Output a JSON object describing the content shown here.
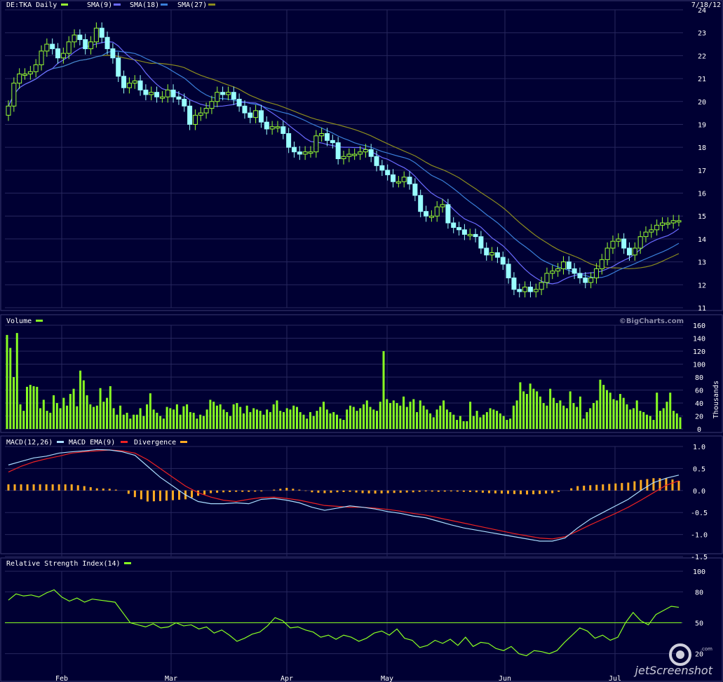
{
  "header": {
    "symbol_label": "DE:TKA Daily",
    "sma1_label": "SMA(9)",
    "sma2_label": "SMA(18)",
    "sma3_label": "SMA(27)",
    "date": "7/18/12"
  },
  "volume_panel": {
    "title": "Volume",
    "watermark": "©BigCharts.com",
    "units": "Thousands"
  },
  "macd_panel": {
    "label_macd": "MACD(12,26)",
    "label_ema": "MACD EMA(9)",
    "label_div": "Divergence"
  },
  "rsi_panel": {
    "title": "Relative Strength Index(14)"
  },
  "footer": {
    "brand": "jetScreenshot",
    "brand_small": ".com"
  },
  "colors": {
    "background": "#000033",
    "grid": "#27275e",
    "up_candle": "#99ff33",
    "down_candle": "#99ffff",
    "sma9": "#6a6aff",
    "sma18": "#3a7fd9",
    "sma27": "#8c8c1e",
    "volume": "#88ff22",
    "macd": "#aaddff",
    "macd_ema": "#ee2222",
    "divergence": "#ffaa22",
    "rsi": "#88ff22"
  },
  "chart_data": [
    {
      "type": "candlestick",
      "title": "DE:TKA Daily",
      "x_tick_labels": [
        "Feb",
        "Mar",
        "Apr",
        "May",
        "Jun",
        "Jul"
      ],
      "y_ticks": [
        11,
        12,
        13,
        14,
        15,
        16,
        17,
        18,
        19,
        20,
        21,
        22,
        23,
        24
      ],
      "ylim": [
        11,
        24
      ],
      "close": [
        19.8,
        20.8,
        21.2,
        21.2,
        21.3,
        21.6,
        22.2,
        22.5,
        22.3,
        21.9,
        22.1,
        22.6,
        22.9,
        22.7,
        22.3,
        22.6,
        23.2,
        22.8,
        22.3,
        21.9,
        21.1,
        20.6,
        20.8,
        20.9,
        20.5,
        20.3,
        20.4,
        20.2,
        20.2,
        20.5,
        20.2,
        20.1,
        19.8,
        19.0,
        19.4,
        19.5,
        19.7,
        20.0,
        20.4,
        20.3,
        20.4,
        20.1,
        19.8,
        19.5,
        19.3,
        19.6,
        19.1,
        18.8,
        18.9,
        18.9,
        18.6,
        18.0,
        17.8,
        17.7,
        17.8,
        17.8,
        18.5,
        18.6,
        18.3,
        18.2,
        17.5,
        17.6,
        17.7,
        17.7,
        17.8,
        17.9,
        17.6,
        17.2,
        17.0,
        16.8,
        16.5,
        16.5,
        16.7,
        16.4,
        15.9,
        15.2,
        15.0,
        15.0,
        15.4,
        15.5,
        14.7,
        14.5,
        14.4,
        14.2,
        14.2,
        14.1,
        13.6,
        13.3,
        13.4,
        13.2,
        12.9,
        12.3,
        11.8,
        11.7,
        11.9,
        11.7,
        11.8,
        12.1,
        12.5,
        12.6,
        12.7,
        13.0,
        12.7,
        12.5,
        12.3,
        12.1,
        12.3,
        12.7,
        13.1,
        13.6,
        13.9,
        14.0,
        13.6,
        13.3,
        13.6,
        14.1,
        14.3,
        14.4,
        14.6,
        14.7,
        14.7,
        14.8,
        14.8
      ]
    },
    {
      "type": "bar",
      "title": "Volume",
      "ylabel": "Thousands",
      "y_ticks": [
        0,
        20,
        40,
        60,
        80,
        100,
        120,
        140,
        160
      ],
      "ylim": [
        0,
        160
      ],
      "values": [
        145,
        125,
        80,
        148,
        38,
        28,
        65,
        68,
        66,
        65,
        32,
        45,
        28,
        25,
        52,
        40,
        32,
        48,
        36,
        54,
        62,
        35,
        90,
        75,
        52,
        38,
        34,
        36,
        63,
        42,
        48,
        66,
        32,
        22,
        36,
        22,
        25,
        16,
        22,
        22,
        32,
        20,
        38,
        55,
        30,
        25,
        20,
        16,
        34,
        32,
        30,
        38,
        22,
        35,
        38,
        26,
        25,
        16,
        22,
        20,
        30,
        45,
        42,
        36,
        38,
        30,
        26,
        20,
        38,
        40,
        34,
        24,
        36,
        26,
        32,
        30,
        28,
        22,
        30,
        26,
        38,
        44,
        28,
        26,
        32,
        30,
        36,
        34,
        26,
        22,
        16,
        26,
        20,
        28,
        34,
        42,
        30,
        24,
        26,
        22,
        16,
        14,
        30,
        36,
        34,
        28,
        32,
        38,
        44,
        34,
        30,
        28,
        42,
        120,
        46,
        40,
        44,
        40,
        36,
        50,
        34,
        42,
        46,
        26,
        44,
        36,
        30,
        24,
        18,
        30,
        36,
        44,
        30,
        26,
        22,
        14,
        20,
        12,
        12,
        42,
        20,
        28,
        18,
        22,
        26,
        32,
        30,
        28,
        24,
        20,
        14,
        16,
        36,
        44,
        72,
        58,
        54,
        70,
        62,
        58,
        50,
        40,
        36,
        62,
        48,
        40,
        44,
        36,
        32,
        58,
        40,
        34,
        50,
        16,
        26,
        32,
        40,
        44,
        76,
        68,
        60,
        56,
        46,
        44,
        54,
        48,
        38,
        30,
        32,
        44,
        28,
        26,
        22,
        20,
        14,
        56,
        28,
        32,
        42,
        56,
        28,
        24,
        18
      ]
    },
    {
      "type": "line",
      "title": "MACD(12,26)",
      "series_names": [
        "MACD(12,26)",
        "MACD EMA(9)",
        "Divergence"
      ],
      "y_ticks": [
        1.0,
        0.5,
        0.0,
        -0.5,
        -1.0,
        -1.5
      ],
      "ylim": [
        -1.5,
        1.0
      ],
      "macd": [
        0.58,
        0.66,
        0.74,
        0.78,
        0.85,
        0.88,
        0.9,
        0.93,
        0.92,
        0.88,
        0.8,
        0.55,
        0.3,
        0.1,
        -0.1,
        -0.25,
        -0.3,
        -0.3,
        -0.28,
        -0.3,
        -0.2,
        -0.18,
        -0.22,
        -0.28,
        -0.38,
        -0.45,
        -0.4,
        -0.35,
        -0.38,
        -0.42,
        -0.48,
        -0.52,
        -0.58,
        -0.62,
        -0.7,
        -0.78,
        -0.85,
        -0.9,
        -0.95,
        -1.0,
        -1.05,
        -1.1,
        -1.15,
        -1.15,
        -1.08,
        -0.85,
        -0.65,
        -0.5,
        -0.35,
        -0.2,
        0.0,
        0.18,
        0.28,
        0.35
      ],
      "ema": [
        0.42,
        0.55,
        0.65,
        0.72,
        0.78,
        0.85,
        0.88,
        0.9,
        0.92,
        0.9,
        0.85,
        0.7,
        0.5,
        0.3,
        0.1,
        -0.05,
        -0.15,
        -0.22,
        -0.25,
        -0.2,
        -0.16,
        -0.15,
        -0.18,
        -0.22,
        -0.28,
        -0.34,
        -0.36,
        -0.38,
        -0.38,
        -0.4,
        -0.43,
        -0.47,
        -0.52,
        -0.56,
        -0.62,
        -0.68,
        -0.74,
        -0.8,
        -0.86,
        -0.92,
        -0.98,
        -1.03,
        -1.08,
        -1.1,
        -1.05,
        -0.92,
        -0.78,
        -0.65,
        -0.52,
        -0.38,
        -0.22,
        -0.05,
        0.12,
        0.22
      ],
      "divergence": [
        0.14,
        0.14,
        0.14,
        0.14,
        0.14,
        0.14,
        0.1,
        0.05,
        0.04,
        0.0,
        -0.15,
        -0.25,
        -0.24,
        -0.22,
        -0.2,
        -0.12,
        -0.06,
        -0.04,
        -0.03,
        -0.03,
        -0.02,
        0.02,
        0.06,
        0.02,
        -0.04,
        -0.06,
        -0.04,
        -0.03,
        -0.06,
        -0.07,
        -0.06,
        -0.05,
        -0.04,
        -0.02,
        -0.03,
        -0.02,
        -0.03,
        -0.04,
        -0.06,
        -0.07,
        -0.08,
        -0.09,
        -0.08,
        -0.06,
        0.0,
        0.1,
        0.12,
        0.14,
        0.16,
        0.18,
        0.24,
        0.28,
        0.28,
        0.22
      ]
    },
    {
      "type": "line",
      "title": "Relative Strength Index(14)",
      "y_ticks": [
        100,
        80,
        50,
        20
      ],
      "ylim": [
        0,
        100
      ],
      "reference_line": 50,
      "values": [
        72,
        78,
        76,
        77,
        75,
        79,
        82,
        75,
        71,
        74,
        70,
        73,
        72,
        71,
        70,
        60,
        50,
        48,
        46,
        49,
        45,
        46,
        50,
        47,
        48,
        44,
        46,
        40,
        43,
        38,
        32,
        35,
        39,
        41,
        47,
        55,
        52,
        45,
        46,
        43,
        41,
        36,
        38,
        34,
        38,
        36,
        32,
        35,
        40,
        42,
        38,
        44,
        35,
        33,
        26,
        28,
        33,
        30,
        34,
        28,
        36,
        27,
        31,
        30,
        25,
        23,
        27,
        20,
        18,
        23,
        22,
        20,
        23,
        31,
        38,
        45,
        42,
        35,
        38,
        33,
        36,
        50,
        60,
        52,
        48,
        58,
        62,
        66,
        65
      ]
    }
  ]
}
